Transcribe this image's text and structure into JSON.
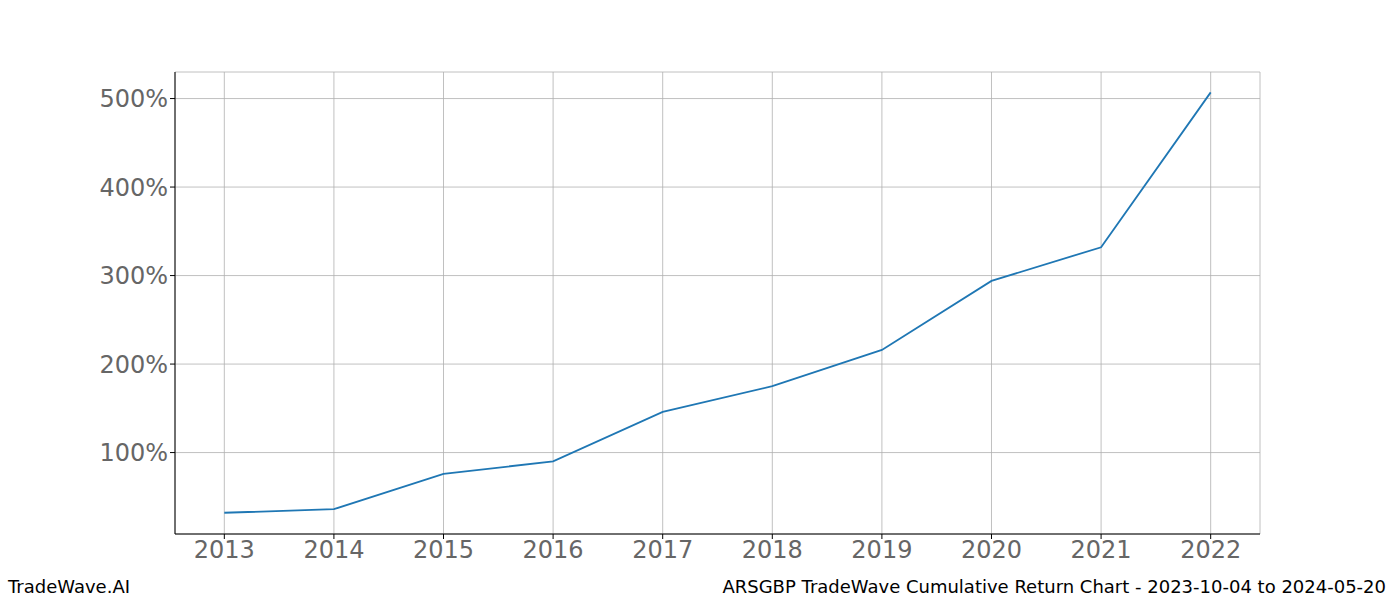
{
  "chart_data": {
    "type": "line",
    "footer": {
      "left": "TradeWave.AI",
      "right": "ARSGBP TradeWave Cumulative Return Chart - 2023-10-04 to 2024-05-20"
    },
    "x": [
      2013,
      2014,
      2015,
      2016,
      2017,
      2018,
      2019,
      2020,
      2021,
      2022
    ],
    "values": [
      32,
      36,
      76,
      90,
      146,
      175,
      216,
      294,
      332,
      507
    ],
    "color": "#1f77b4",
    "xlim": [
      2012.55,
      2022.45
    ],
    "xticks": [
      2013,
      2014,
      2015,
      2016,
      2017,
      2018,
      2019,
      2020,
      2021,
      2022
    ],
    "ylim": [
      8,
      530
    ],
    "yticks": [
      {
        "value": 100,
        "label": "100%"
      },
      {
        "value": 200,
        "label": "200%"
      },
      {
        "value": 300,
        "label": "300%"
      },
      {
        "value": 400,
        "label": "400%"
      },
      {
        "value": 500,
        "label": "500%"
      }
    ],
    "grid": true
  }
}
